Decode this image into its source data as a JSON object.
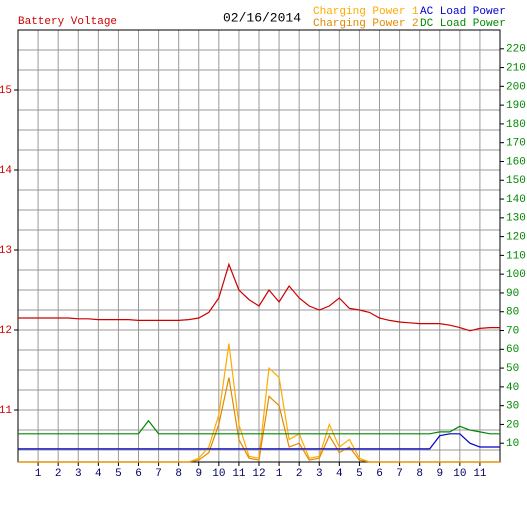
{
  "chart_data": {
    "type": "line",
    "title": "02/16/2014",
    "ylabel": "Battery Voltage",
    "x": [
      0,
      0.5,
      1,
      1.5,
      2,
      2.5,
      3,
      3.5,
      4,
      4.5,
      5,
      5.5,
      6,
      6.5,
      7,
      7.5,
      8,
      8.5,
      9,
      9.5,
      10,
      10.5,
      11,
      11.5,
      12,
      12.5,
      13,
      13.5,
      14,
      14.5,
      15,
      15.5,
      16,
      16.5,
      17,
      17.5,
      18,
      18.5,
      19,
      19.5,
      20,
      20.5,
      21,
      21.5,
      22,
      22.5,
      23,
      23.5,
      24
    ],
    "xlim": [
      0,
      24
    ],
    "xticks": [
      1,
      2,
      3,
      4,
      5,
      6,
      7,
      8,
      9,
      10,
      11,
      12,
      {
        "value": 13,
        "label": "1"
      },
      {
        "value": 14,
        "label": "2"
      },
      {
        "value": 15,
        "label": "3"
      },
      {
        "value": 16,
        "label": "4"
      },
      {
        "value": 17,
        "label": "5"
      },
      {
        "value": 18,
        "label": "6"
      },
      {
        "value": 19,
        "label": "7"
      },
      {
        "value": 20,
        "label": "8"
      },
      {
        "value": 21,
        "label": "9"
      },
      {
        "value": 22,
        "label": "10"
      },
      {
        "value": 23,
        "label": "11"
      }
    ],
    "ylim": [
      10.35,
      15.75
    ],
    "yticks": [
      11,
      12,
      13,
      14,
      15
    ],
    "ygrid": [
      10.5,
      10.75,
      11,
      11.25,
      11.5,
      11.75,
      12,
      12.25,
      12.5,
      12.75,
      13,
      13.25,
      13.5,
      13.75,
      14,
      14.25,
      14.5,
      14.75,
      15,
      15.25,
      15.5
    ],
    "y2lim": [
      0,
      230
    ],
    "y2ticks": [
      10,
      20,
      30,
      40,
      50,
      60,
      70,
      80,
      90,
      100,
      110,
      120,
      130,
      140,
      150,
      160,
      170,
      180,
      190,
      200,
      210,
      220
    ],
    "grid": true,
    "series": [
      {
        "name": "Battery Voltage",
        "color": "#cc0000",
        "axis": "y",
        "values": [
          12.15,
          12.15,
          12.15,
          12.15,
          12.15,
          12.15,
          12.14,
          12.14,
          12.13,
          12.13,
          12.13,
          12.13,
          12.12,
          12.12,
          12.12,
          12.12,
          12.12,
          12.13,
          12.15,
          12.22,
          12.4,
          12.82,
          12.5,
          12.38,
          12.3,
          12.5,
          12.35,
          12.55,
          12.4,
          12.3,
          12.25,
          12.3,
          12.4,
          12.27,
          12.25,
          12.22,
          12.15,
          12.12,
          12.1,
          12.09,
          12.08,
          12.08,
          12.08,
          12.06,
          12.03,
          11.99,
          12.02,
          12.03,
          12.03
        ]
      },
      {
        "name": "Charging Power 1",
        "color": "#ffaa00",
        "axis": "y2",
        "values": [
          0,
          0,
          0,
          0,
          0,
          0,
          0,
          0,
          0,
          0,
          0,
          0,
          0,
          0,
          0,
          0,
          0,
          0,
          2,
          8,
          25,
          63,
          20,
          3,
          2,
          50,
          45,
          12,
          15,
          2,
          3,
          20,
          8,
          12,
          2,
          0,
          0,
          0,
          0,
          0,
          0,
          0,
          0,
          0,
          0,
          0,
          0,
          0,
          0
        ]
      },
      {
        "name": "Charging Power 2",
        "color": "#e08a00",
        "axis": "y2",
        "values": [
          0,
          0,
          0,
          0,
          0,
          0,
          0,
          0,
          0,
          0,
          0,
          0,
          0,
          0,
          0,
          0,
          0,
          0,
          1,
          5,
          20,
          45,
          12,
          2,
          1,
          35,
          30,
          8,
          10,
          1,
          2,
          14,
          5,
          8,
          1,
          0,
          0,
          0,
          0,
          0,
          0,
          0,
          0,
          0,
          0,
          0,
          0,
          0,
          0
        ]
      },
      {
        "name": "AC Load Power",
        "color": "#0000cc",
        "axis": "y2",
        "values": [
          7,
          7,
          7,
          7,
          7,
          7,
          7,
          7,
          7,
          7,
          7,
          7,
          7,
          7,
          7,
          7,
          7,
          7,
          7,
          7,
          7,
          7,
          7,
          7,
          7,
          7,
          7,
          7,
          7,
          7,
          7,
          7,
          7,
          7,
          7,
          7,
          7,
          7,
          7,
          7,
          7,
          7,
          14,
          15,
          15,
          10,
          8,
          8,
          8
        ]
      },
      {
        "name": "DC Load Power",
        "color": "#008800",
        "axis": "y2",
        "values": [
          15,
          15,
          15,
          15,
          15,
          15,
          15,
          15,
          15,
          15,
          15,
          15,
          15,
          22,
          15,
          15,
          15,
          15,
          15,
          15,
          15,
          15,
          15,
          15,
          15,
          15,
          15,
          15,
          15,
          15,
          15,
          15,
          15,
          15,
          15,
          15,
          15,
          15,
          15,
          15,
          15,
          15,
          16,
          16,
          19,
          17,
          16,
          15,
          15
        ]
      }
    ]
  }
}
